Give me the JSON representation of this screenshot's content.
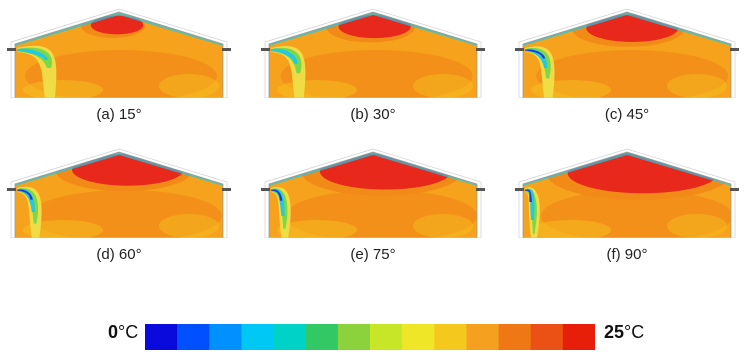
{
  "panels": [
    {
      "label": "(a) 15°",
      "angle": 15
    },
    {
      "label": "(b) 30°",
      "angle": 30
    },
    {
      "label": "(c) 45°",
      "angle": 45
    },
    {
      "label": "(d) 60°",
      "angle": 60
    },
    {
      "label": "(e) 75°",
      "angle": 75
    },
    {
      "label": "(f) 90°",
      "angle": 90
    }
  ],
  "colorbar": {
    "min_value": "0",
    "max_value": "25",
    "unit": "°C",
    "colors": [
      "#0a0adc",
      "#0050ff",
      "#0090ff",
      "#00c8f5",
      "#00d2c8",
      "#32c864",
      "#8cd23c",
      "#c8e628",
      "#f0e628",
      "#f5c81e",
      "#f5a01e",
      "#f07814",
      "#eb5014",
      "#e61e0a"
    ]
  },
  "colors": {
    "background": "#f7a21c",
    "hot": "#e8281a",
    "warm": "#f28a18",
    "mild": "#f5c020",
    "cool": "#f0e24a",
    "jet_cold": "#1e3cd2",
    "jet_cyan": "#22c8e6",
    "jet_green": "#7ad84a"
  }
}
